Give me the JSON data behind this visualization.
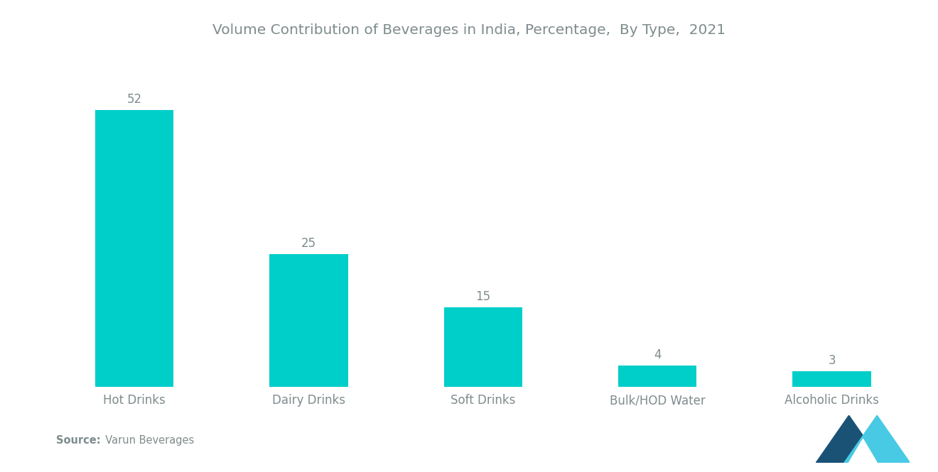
{
  "title": "Volume Contribution of Beverages in India, Percentage,  By Type,  2021",
  "categories": [
    "Hot Drinks",
    "Dairy Drinks",
    "Soft Drinks",
    "Bulk/HOD Water",
    "Alcoholic Drinks"
  ],
  "values": [
    52,
    25,
    15,
    4,
    3
  ],
  "bar_color": "#00CEC9",
  "background_color": "#FFFFFF",
  "title_fontsize": 14.5,
  "label_fontsize": 12,
  "value_fontsize": 12,
  "source_bold": "Source:",
  "source_normal": "  Varun Beverages",
  "ylim": [
    0,
    62
  ],
  "text_color": "#7f8c8d",
  "logo_dark": "#1a5276",
  "logo_teal": "#48cae4"
}
